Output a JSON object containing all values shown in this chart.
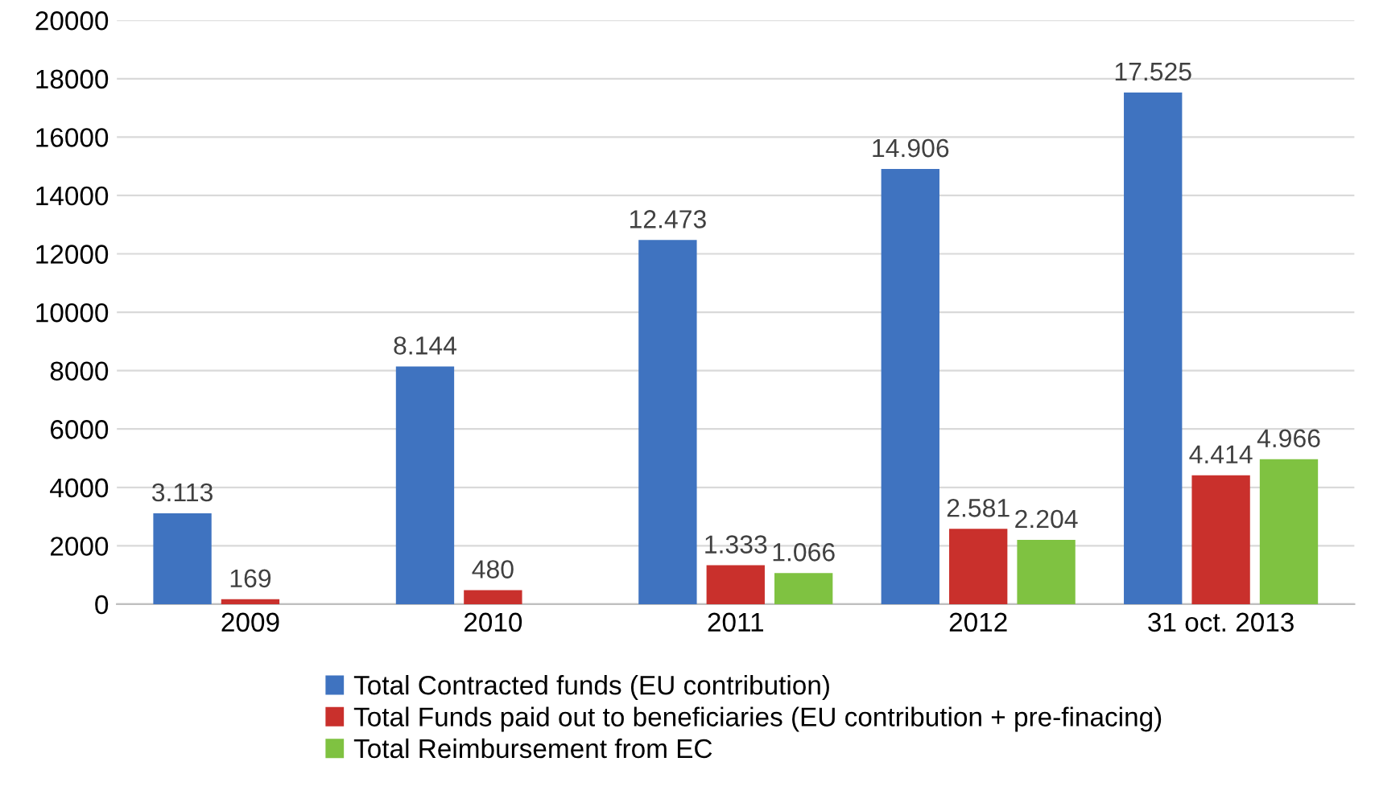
{
  "chart_data": {
    "type": "bar",
    "categories": [
      "2009",
      "2010",
      "2011",
      "2012",
      "31 oct. 2013"
    ],
    "series": [
      {
        "name": "Total Contracted funds (EU contribution)",
        "color": "#3f73c0",
        "values": [
          3113,
          8144,
          12473,
          14906,
          17525
        ],
        "value_labels": [
          "3.113",
          "8.144",
          "12.473",
          "14.906",
          "17.525"
        ]
      },
      {
        "name": "Total Funds paid out to beneficiaries (EU contribution + pre-finacing)",
        "color": "#c9302c",
        "values": [
          169,
          480,
          1333,
          2581,
          4414
        ],
        "value_labels": [
          "169",
          "480",
          "1.333",
          "2.581",
          "4.414"
        ]
      },
      {
        "name": "Total Reimbursement from EC",
        "color": "#7fc241",
        "values": [
          null,
          null,
          1066,
          2204,
          4966
        ],
        "value_labels": [
          null,
          null,
          "1.066",
          "2.204",
          "4.966"
        ]
      }
    ],
    "ylim": [
      0,
      20000
    ],
    "yticks": [
      0,
      2000,
      4000,
      6000,
      8000,
      10000,
      12000,
      14000,
      16000,
      18000,
      20000
    ],
    "grid": "y",
    "legend": "bottom"
  }
}
